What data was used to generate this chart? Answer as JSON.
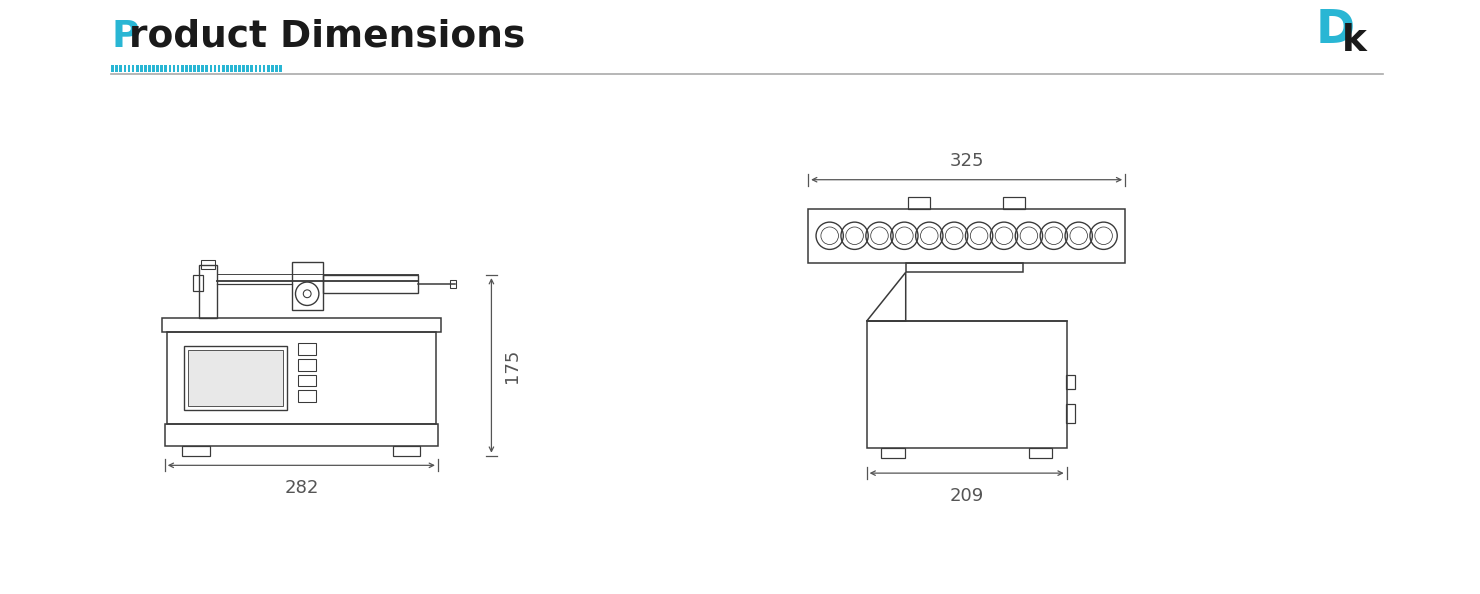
{
  "title": "Product Dimensions",
  "title_color": "#1a1a1a",
  "title_P_color": "#29b6d4",
  "bg_color": "#ffffff",
  "line_color": "#3a3a3a",
  "dim_color": "#555555",
  "cyan_color": "#29b6d4",
  "gray_line_color": "#aaaaaa",
  "dim_282": "282",
  "dim_175": "175",
  "dim_325": "325",
  "dim_209": "209"
}
